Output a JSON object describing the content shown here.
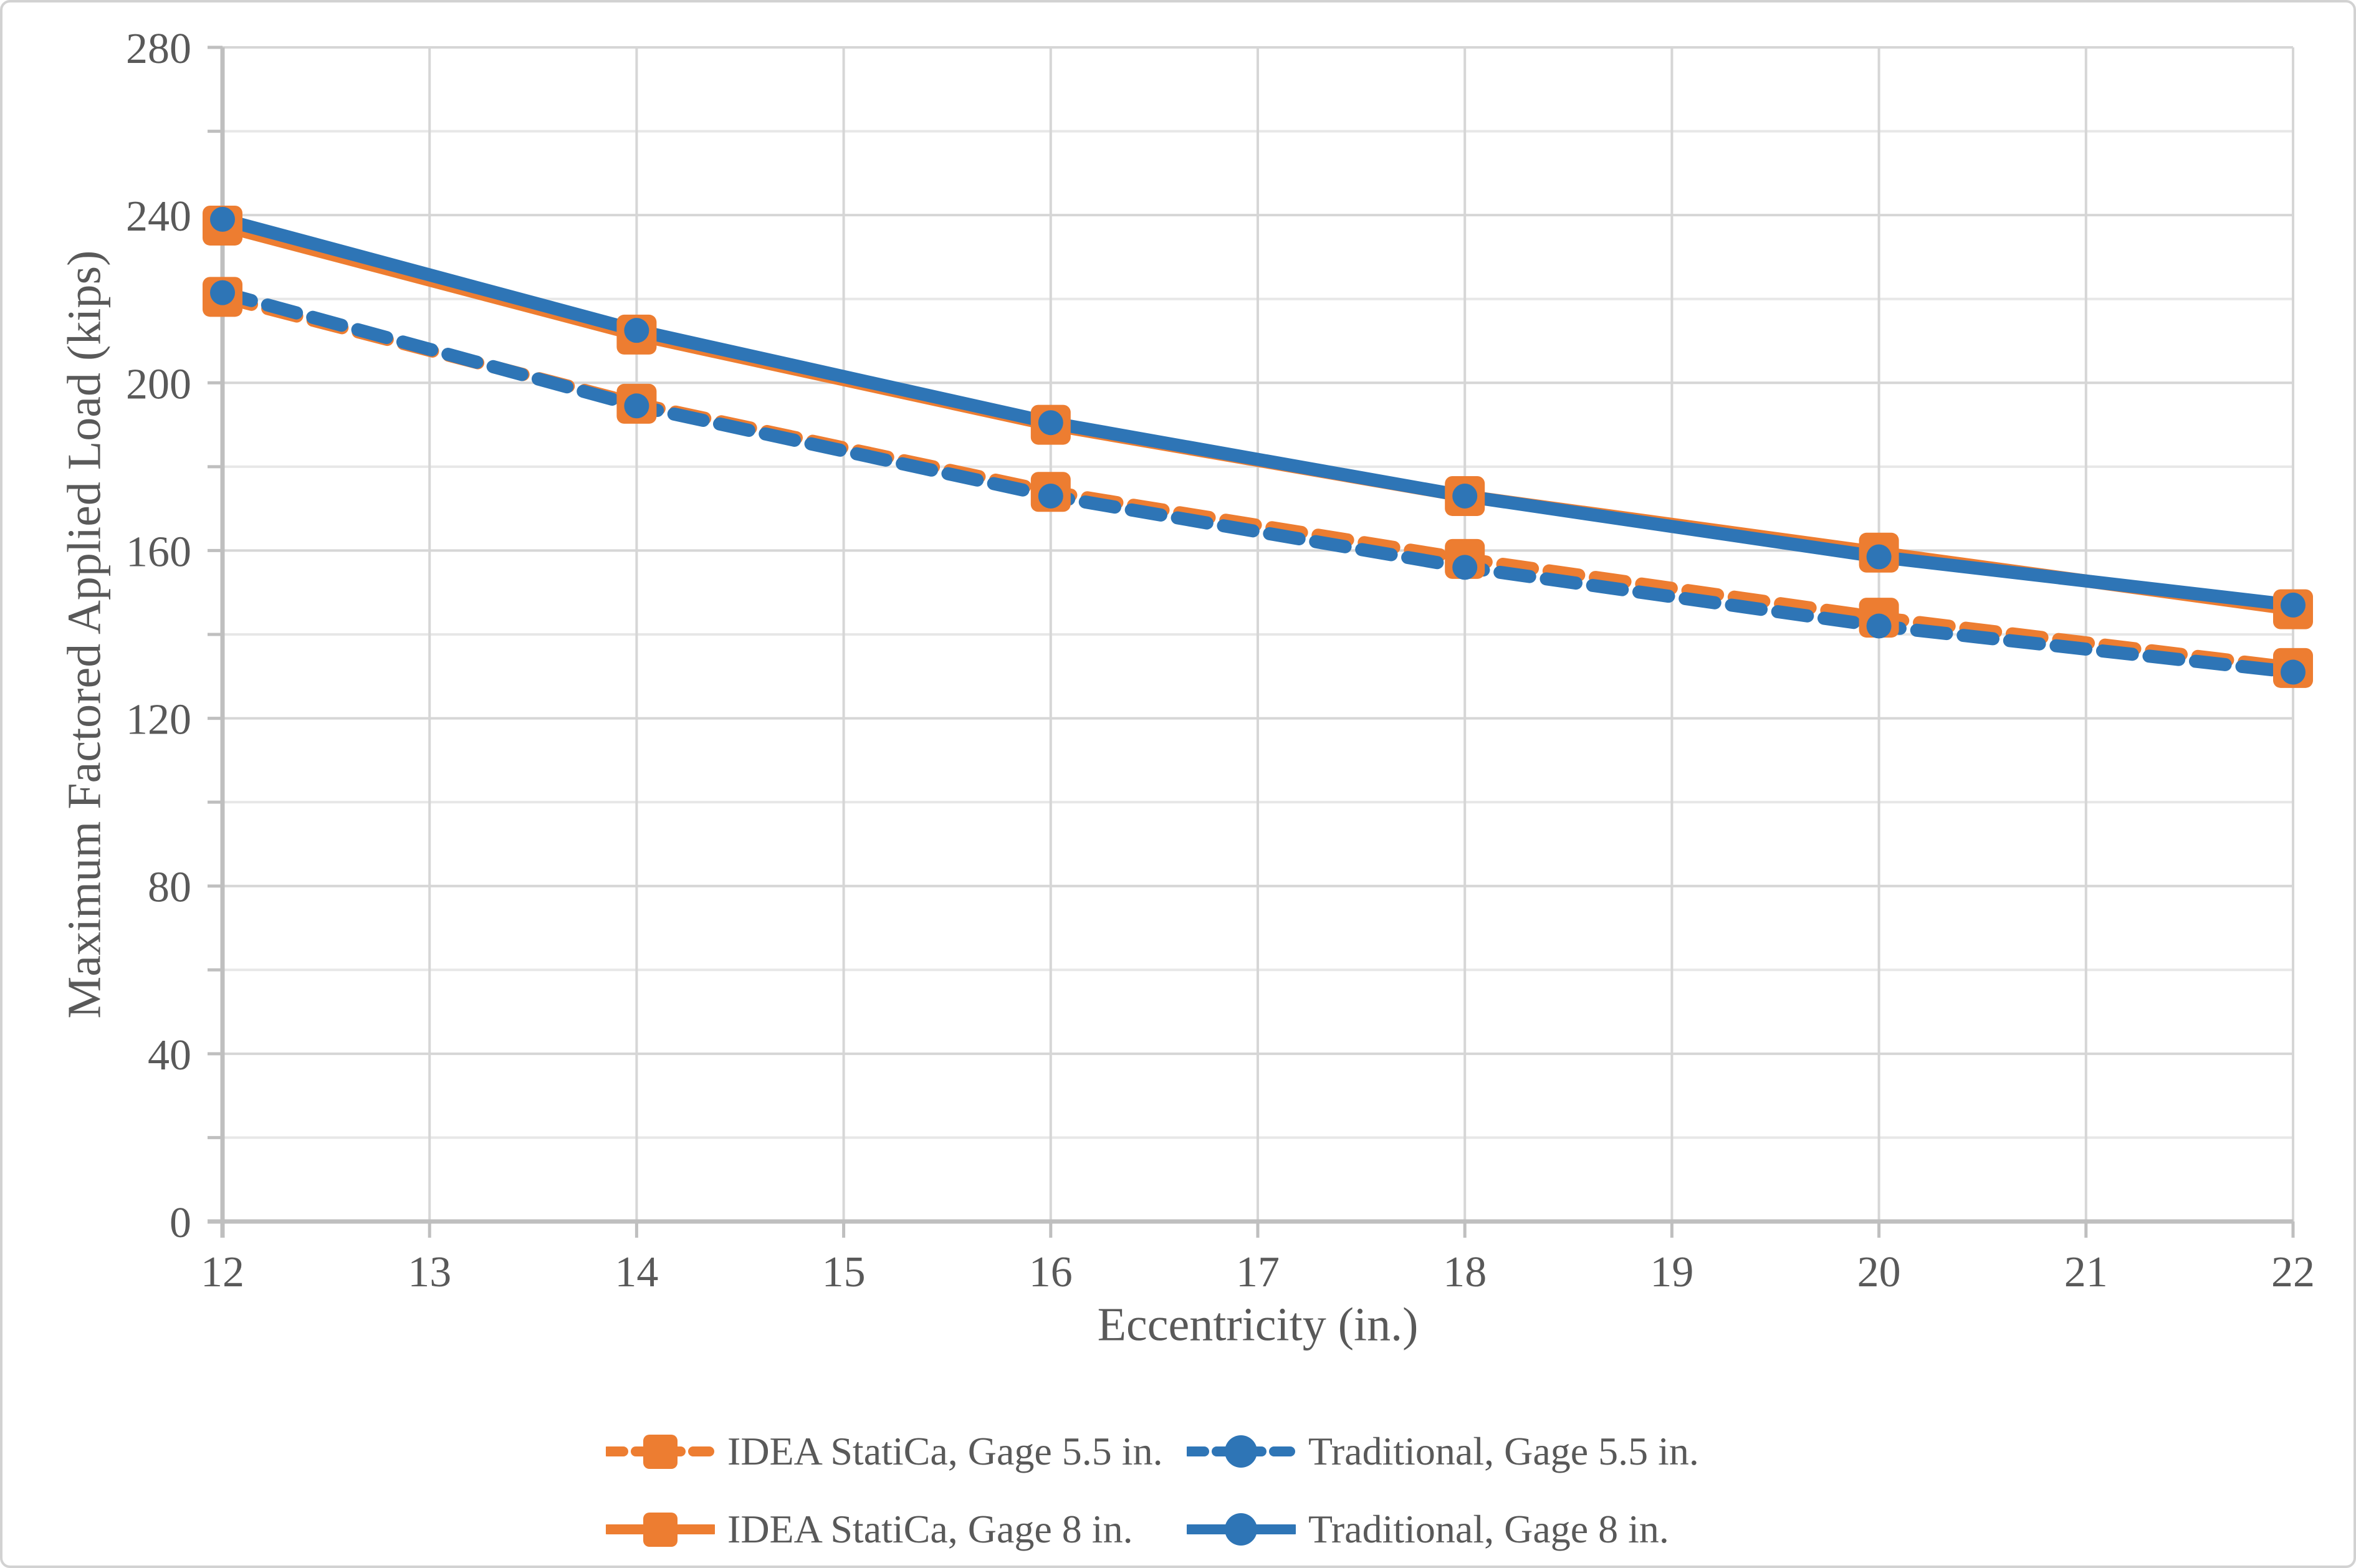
{
  "chart_data": {
    "type": "line",
    "title": "",
    "xlabel": "Eccentricity (in.)",
    "ylabel": "Maximum Factored Applied Load (kips)",
    "xlim": [
      12,
      22
    ],
    "ylim": [
      0,
      280
    ],
    "x_tick_step": 1,
    "y_gridline_step": 20,
    "y_label_step": 40,
    "grid": true,
    "legend_position": "bottom",
    "x_tick_labels": [
      "12",
      "13",
      "14",
      "15",
      "16",
      "17",
      "18",
      "19",
      "20",
      "21",
      "22"
    ],
    "y_tick_labels": [
      "0",
      "40",
      "80",
      "120",
      "160",
      "200",
      "240",
      "280"
    ],
    "x": [
      12,
      14,
      16,
      18,
      20,
      22
    ],
    "series": [
      {
        "name": "IDEA StatiCa, Gage 5.5 in.",
        "color": "#ED7D31",
        "line": "dashed",
        "marker": "square",
        "values": [
          220.5,
          195,
          174,
          158,
          144,
          132
        ]
      },
      {
        "name": "Traditional, Gage 5.5 in.",
        "color": "#2E75B6",
        "line": "dashed",
        "marker": "circle",
        "values": [
          221.5,
          194.5,
          173,
          156,
          142,
          131
        ]
      },
      {
        "name": "IDEA StatiCa, Gage 8 in.",
        "color": "#ED7D31",
        "line": "solid",
        "marker": "square",
        "values": [
          237.5,
          211.5,
          190,
          173,
          159.5,
          146
        ]
      },
      {
        "name": "Traditional, Gage 8 in.",
        "color": "#2E75B6",
        "line": "solid",
        "marker": "circle",
        "values": [
          239,
          212.5,
          190.5,
          173,
          158.5,
          147
        ]
      }
    ],
    "colors": {
      "axis": "#BFBFBF",
      "grid_major": "#D6D6D6",
      "grid_minor": "#E7E7E7",
      "text": "#595959",
      "background": "#FFFFFF",
      "orange": "#ED7D31",
      "blue": "#2E75B6"
    }
  }
}
